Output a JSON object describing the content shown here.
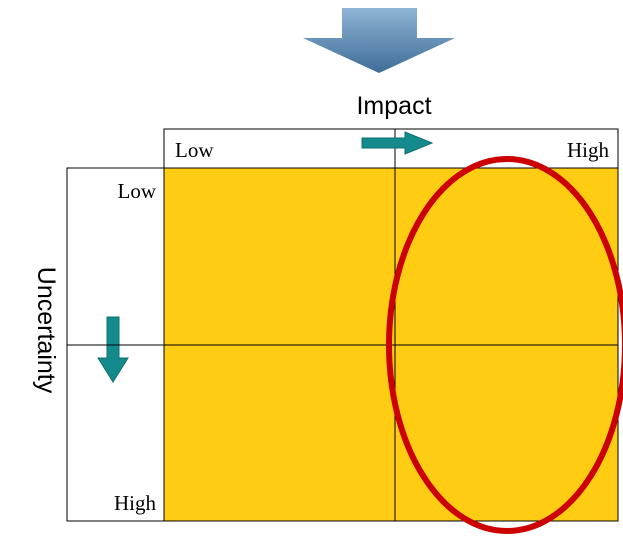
{
  "colors": {
    "quadrant_fill": "#ffcc14",
    "arrow_teal": "#138b8c",
    "arrow_teal_stroke": "#0f6f70",
    "top_arrow_light": "#8fb4d6",
    "top_arrow_dark": "#3f6d97",
    "highlight_ellipse": "#cc0000",
    "line": "#000000"
  },
  "icons": {
    "top_arrow": "down-arrow-gradient-icon",
    "impact_arrow": "right-arrow-icon",
    "uncertainty_arrow": "down-arrow-icon"
  },
  "axes": {
    "impact": {
      "title": "Impact",
      "low_label": "Low",
      "high_label": "High"
    },
    "uncertainty": {
      "title": "Uncertainty",
      "low_label": "Low",
      "high_label": "High"
    }
  }
}
